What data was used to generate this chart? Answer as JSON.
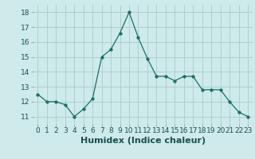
{
  "x": [
    0,
    1,
    2,
    3,
    4,
    5,
    6,
    7,
    8,
    9,
    10,
    11,
    12,
    13,
    14,
    15,
    16,
    17,
    18,
    19,
    20,
    21,
    22,
    23
  ],
  "y": [
    12.5,
    12.0,
    12.0,
    11.8,
    11.0,
    11.5,
    12.2,
    15.0,
    15.5,
    16.6,
    18.0,
    16.3,
    14.9,
    13.7,
    13.7,
    13.4,
    13.7,
    13.7,
    12.8,
    12.8,
    12.8,
    12.0,
    11.3,
    11.0
  ],
  "line_color": "#1a7060",
  "marker": "o",
  "marker_size": 2.5,
  "bg_color": "#ceeaea",
  "grid_color": "#aacccc",
  "xlabel": "Humidex (Indice chaleur)",
  "ylim": [
    10.5,
    18.5
  ],
  "yticks": [
    11,
    12,
    13,
    14,
    15,
    16,
    17,
    18
  ],
  "xticks": [
    0,
    1,
    2,
    3,
    4,
    5,
    6,
    7,
    8,
    9,
    10,
    11,
    12,
    13,
    14,
    15,
    16,
    17,
    18,
    19,
    20,
    21,
    22,
    23
  ],
  "tick_fontsize": 6.5,
  "xlabel_fontsize": 8.0
}
